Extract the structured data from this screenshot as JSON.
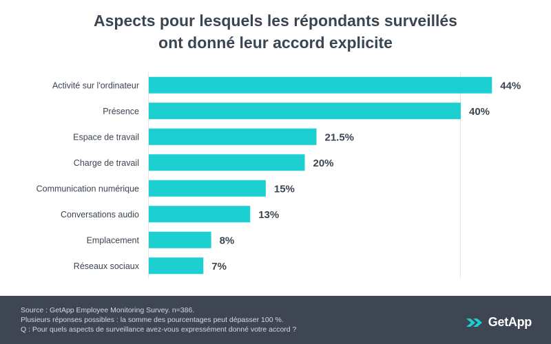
{
  "chart_data": {
    "type": "bar",
    "orientation": "horizontal",
    "title_lines": [
      "Aspects pour lesquels les répondants surveillés",
      "ont donné leur accord explicite"
    ],
    "categories": [
      "Activité sur l'ordinateur",
      "Présence",
      "Espace de travail",
      "Charge de travail",
      "Communication numérique",
      "Conversations audio",
      "Emplacement",
      "Réseaux sociaux"
    ],
    "values": [
      44,
      40,
      21.5,
      20,
      15,
      13,
      8,
      7
    ],
    "value_labels": [
      "44%",
      "40%",
      "21.5%",
      "20%",
      "15%",
      "13%",
      "8%",
      "7%"
    ],
    "xlim": [
      0,
      40
    ],
    "unit": "%",
    "bar_color": "#1ccfd0",
    "grid_color": "#e4e7ea"
  },
  "footer": {
    "source": "Source : GetApp Employee Monitoring Survey. n=386.",
    "note": "Plusieurs réponses possibles : la somme des pourcentages peut dépasser 100 %.",
    "question": "Q : Pour quels aspects de surveillance avez-vous expressément donné votre accord ?",
    "brand": "GetApp"
  }
}
